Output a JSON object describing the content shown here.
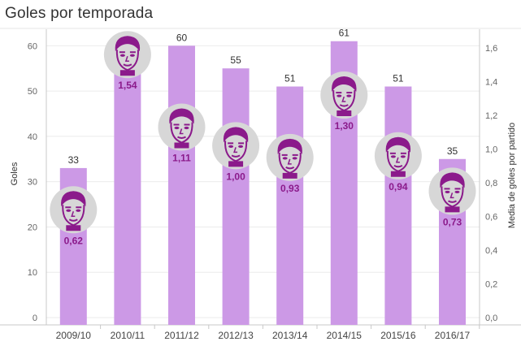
{
  "title": "Goles por temporada",
  "colors": {
    "bar": "#cc99e6",
    "avatar_bg": "#d7d7d7",
    "avatar_face": "#8b1a8b",
    "avg_label": "#8b1a8b",
    "grid": "#ebebeb",
    "axis": "#c8c8c8"
  },
  "chart_data": {
    "type": "bar",
    "title": "Goles por temporada",
    "xlabel": "",
    "ylabel": "Goles",
    "y2label": "Media de goles por partido",
    "categories": [
      "2009/10",
      "2010/11",
      "2011/12",
      "2012/13",
      "2013/14",
      "2014/15",
      "2015/16",
      "2016/17"
    ],
    "series": [
      {
        "name": "Goles",
        "values": [
          33,
          54,
          60,
          55,
          51,
          61,
          51,
          35
        ],
        "value_labels": [
          "33",
          "54",
          "60",
          "55",
          "51",
          "61",
          "51",
          "35"
        ]
      },
      {
        "name": "Media de goles por partido",
        "axis": "right",
        "marker": "face-avatar-icon",
        "values": [
          0.62,
          1.54,
          1.11,
          1.0,
          0.93,
          1.3,
          0.94,
          0.73
        ],
        "value_labels": [
          "0,62",
          "1,54",
          "1,11",
          "1,00",
          "0,93",
          "1,30",
          "0,94",
          "0,73"
        ]
      }
    ],
    "ylim": [
      0,
      64
    ],
    "y2lim": [
      0,
      1.7
    ],
    "yticks": [
      0,
      10,
      20,
      30,
      40,
      50,
      60
    ],
    "ytick_labels": [
      "0",
      "10",
      "20",
      "30",
      "40",
      "50",
      "60"
    ],
    "y2ticks": [
      0,
      0.2,
      0.4,
      0.6,
      0.8,
      1.0,
      1.2,
      1.4,
      1.6
    ],
    "y2tick_labels": [
      "0,0",
      "0,2",
      "0,4",
      "0,6",
      "0,8",
      "1,0",
      "1,2",
      "1,4",
      "1,6"
    ],
    "grid": true,
    "legend": "none"
  }
}
